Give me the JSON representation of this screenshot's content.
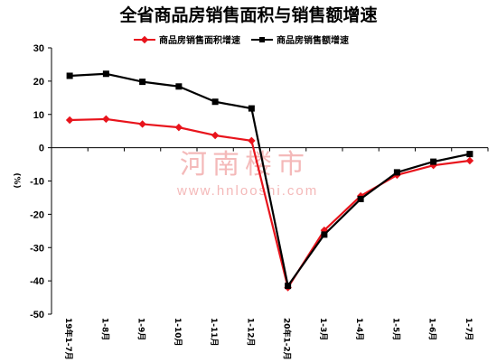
{
  "watermark": {
    "cn": "河南楼市",
    "url": "www.hnlooshi.com"
  },
  "chart_data": {
    "type": "line",
    "title": "全省商品房销售面积与销售额增速",
    "ylabel": "(%)",
    "ylim": [
      -50,
      30
    ],
    "yticks": [
      30,
      20,
      10,
      0,
      -10,
      -20,
      -30,
      -40,
      -50
    ],
    "categories": [
      "19年1-7月",
      "1-8月",
      "1-9月",
      "1-10月",
      "1-11月",
      "1-12月",
      "20年1-2月",
      "1-3月",
      "1-4月",
      "1-5月",
      "1-6月",
      "1-7月"
    ],
    "legend_position": "top",
    "grid": false,
    "series": [
      {
        "name": "商品房销售面积增速",
        "color": "#e8141c",
        "marker": "diamond",
        "values": [
          8.3,
          8.6,
          7.1,
          6.1,
          3.7,
          2.1,
          -42.0,
          -24.8,
          -14.5,
          -8.2,
          -5.3,
          -3.9
        ]
      },
      {
        "name": "商品房销售额增速",
        "color": "#000000",
        "marker": "square",
        "values": [
          21.6,
          22.2,
          19.8,
          18.4,
          13.8,
          11.8,
          -41.5,
          -26.1,
          -15.4,
          -7.4,
          -4.2,
          -1.9
        ]
      }
    ]
  }
}
